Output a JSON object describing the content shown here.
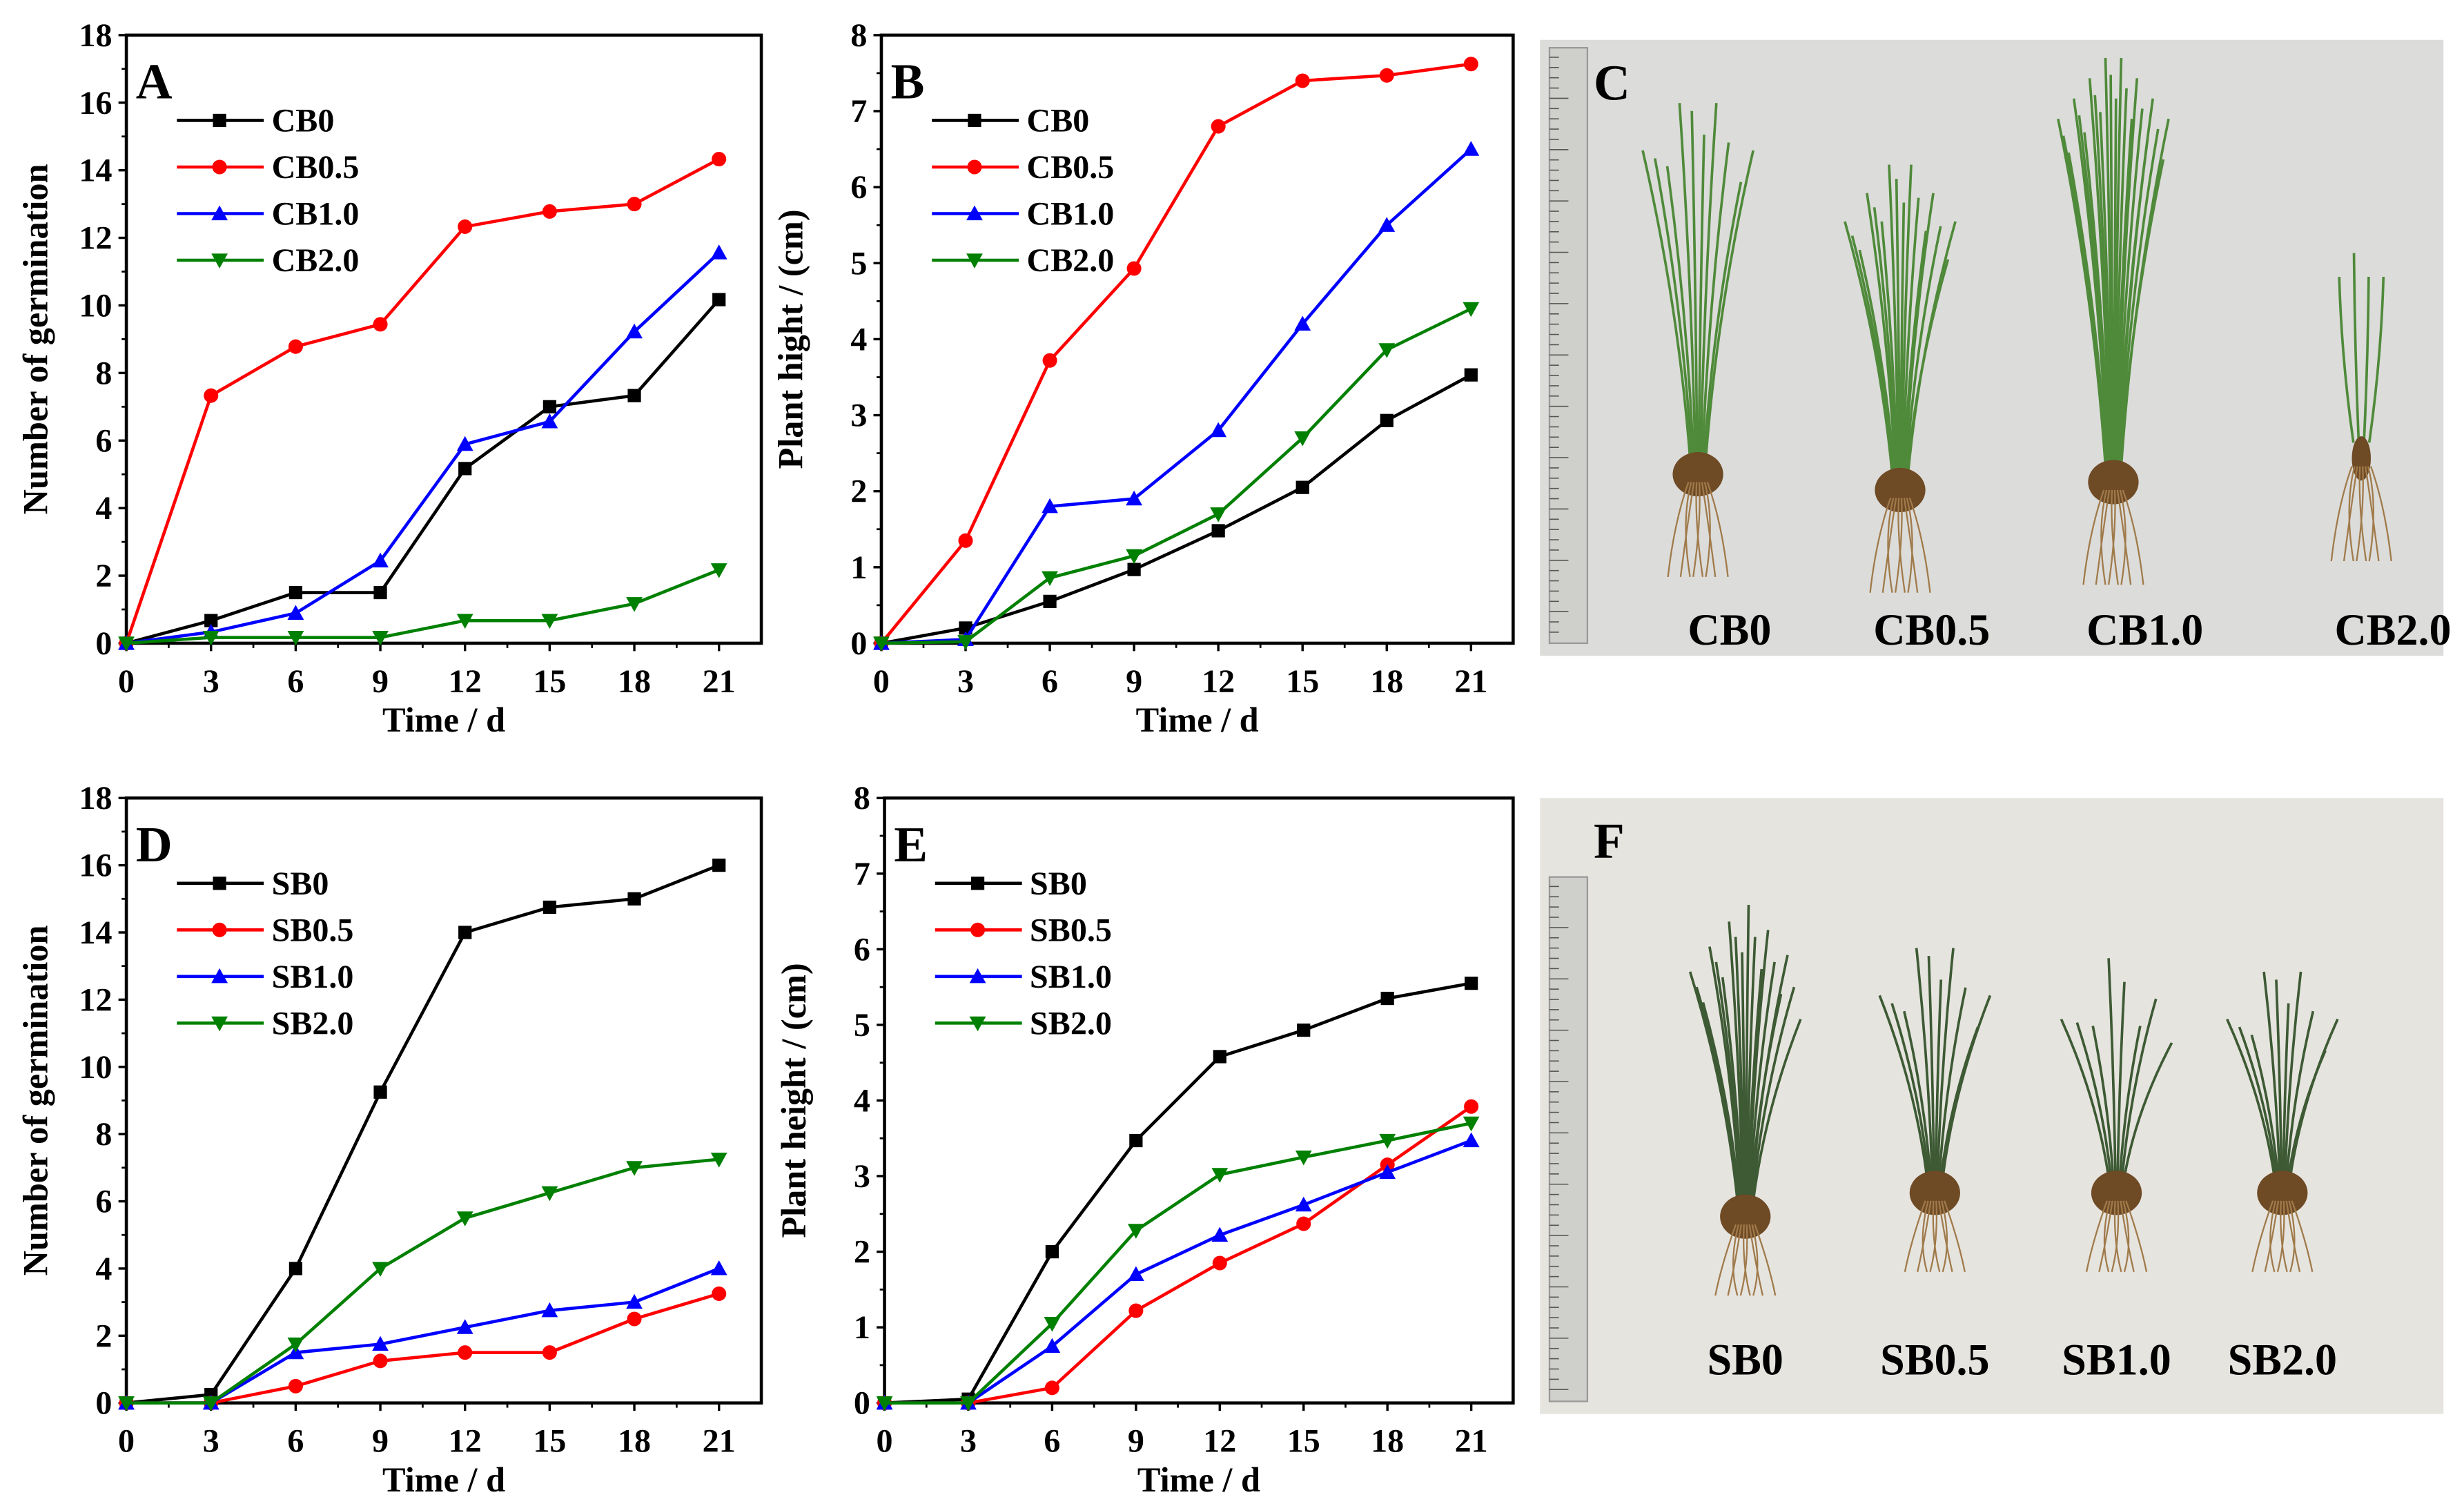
{
  "chart_data": [
    {
      "panel": "A",
      "type": "line",
      "xlabel": "Time / d",
      "ylabel": "Number of germination",
      "x": [
        0,
        3,
        6,
        9,
        12,
        15,
        18,
        21
      ],
      "xlim": [
        0,
        22.5
      ],
      "xticks": [
        0,
        3,
        6,
        9,
        12,
        15,
        18,
        21
      ],
      "ylim": [
        0,
        18
      ],
      "yticks": [
        0,
        2,
        4,
        6,
        8,
        10,
        12,
        14,
        16,
        18
      ],
      "grid": false,
      "legend": "top-left",
      "series": [
        {
          "name": "CB0",
          "color": "#000000",
          "marker": "square",
          "values": [
            0,
            0.67,
            1.5,
            1.5,
            5.17,
            7,
            7.33,
            10.17
          ]
        },
        {
          "name": "CB0.5",
          "color": "#ff0000",
          "marker": "circle",
          "values": [
            0,
            7.33,
            8.78,
            9.44,
            12.33,
            12.78,
            13,
            14.33
          ]
        },
        {
          "name": "CB1.0",
          "color": "#0000ff",
          "marker": "triangle-up",
          "values": [
            0,
            0.33,
            0.89,
            2.44,
            5.89,
            6.56,
            9.22,
            11.56
          ]
        },
        {
          "name": "CB2.0",
          "color": "#008000",
          "marker": "triangle-down",
          "values": [
            0,
            0.17,
            0.17,
            0.17,
            0.67,
            0.67,
            1.17,
            2.17
          ]
        }
      ]
    },
    {
      "panel": "B",
      "type": "line",
      "xlabel": "Time / d",
      "ylabel": "Plant hight / (cm)",
      "x": [
        0,
        3,
        6,
        9,
        12,
        15,
        18,
        21
      ],
      "xlim": [
        0,
        22.5
      ],
      "xticks": [
        0,
        3,
        6,
        9,
        12,
        15,
        18,
        21
      ],
      "ylim": [
        0,
        8
      ],
      "yticks": [
        0,
        1,
        2,
        3,
        4,
        5,
        6,
        7,
        8
      ],
      "grid": false,
      "legend": "top-left",
      "series": [
        {
          "name": "CB0",
          "color": "#000000",
          "marker": "square",
          "values": [
            0,
            0.2,
            0.55,
            0.97,
            1.48,
            2.05,
            2.93,
            3.53
          ]
        },
        {
          "name": "CB0.5",
          "color": "#ff0000",
          "marker": "circle",
          "values": [
            0,
            1.35,
            3.72,
            4.93,
            6.8,
            7.4,
            7.47,
            7.62
          ]
        },
        {
          "name": "CB1.0",
          "color": "#0000ff",
          "marker": "triangle-up",
          "values": [
            0,
            0.05,
            1.8,
            1.9,
            2.8,
            4.2,
            5.5,
            6.5
          ]
        },
        {
          "name": "CB2.0",
          "color": "#008000",
          "marker": "triangle-down",
          "values": [
            0,
            0.02,
            0.86,
            1.15,
            1.7,
            2.7,
            3.86,
            4.4
          ]
        }
      ]
    },
    {
      "panel": "D",
      "type": "line",
      "xlabel": "Time / d",
      "ylabel": "Number of germination",
      "x": [
        0,
        3,
        6,
        9,
        12,
        15,
        18,
        21
      ],
      "xlim": [
        0,
        22.5
      ],
      "xticks": [
        0,
        3,
        6,
        9,
        12,
        15,
        18,
        21
      ],
      "ylim": [
        0,
        18
      ],
      "yticks": [
        0,
        2,
        4,
        6,
        8,
        10,
        12,
        14,
        16,
        18
      ],
      "grid": false,
      "legend": "top-left",
      "series": [
        {
          "name": "SB0",
          "color": "#000000",
          "marker": "square",
          "values": [
            0,
            0.25,
            4,
            9.25,
            14,
            14.75,
            15,
            16
          ]
        },
        {
          "name": "SB0.5",
          "color": "#ff0000",
          "marker": "circle",
          "values": [
            0,
            0,
            0.5,
            1.25,
            1.5,
            1.5,
            2.5,
            3.25
          ]
        },
        {
          "name": "SB1.0",
          "color": "#0000ff",
          "marker": "triangle-up",
          "values": [
            0,
            0,
            1.5,
            1.75,
            2.25,
            2.75,
            3,
            4
          ]
        },
        {
          "name": "SB2.0",
          "color": "#008000",
          "marker": "triangle-down",
          "values": [
            0,
            0,
            1.75,
            4,
            5.5,
            6.25,
            7,
            7.25
          ]
        }
      ]
    },
    {
      "panel": "E",
      "type": "line",
      "xlabel": "Time / d",
      "ylabel": "Plant height / (cm)",
      "x": [
        0,
        3,
        6,
        9,
        12,
        15,
        18,
        21
      ],
      "xlim": [
        0,
        22.5
      ],
      "xticks": [
        0,
        3,
        6,
        9,
        12,
        15,
        18,
        21
      ],
      "ylim": [
        0,
        8
      ],
      "yticks": [
        0,
        1,
        2,
        3,
        4,
        5,
        6,
        7,
        8
      ],
      "grid": false,
      "legend": "top-left",
      "series": [
        {
          "name": "SB0",
          "color": "#000000",
          "marker": "square",
          "values": [
            0,
            0.05,
            2,
            3.47,
            4.58,
            4.93,
            5.35,
            5.55
          ]
        },
        {
          "name": "SB0.5",
          "color": "#ff0000",
          "marker": "circle",
          "values": [
            0,
            0,
            0.2,
            1.22,
            1.85,
            2.37,
            3.15,
            3.92
          ]
        },
        {
          "name": "SB1.0",
          "color": "#0000ff",
          "marker": "triangle-up",
          "values": [
            0,
            0,
            0.75,
            1.7,
            2.22,
            2.62,
            3.05,
            3.47
          ]
        },
        {
          "name": "SB2.0",
          "color": "#008000",
          "marker": "triangle-down",
          "values": [
            0,
            0,
            1.05,
            2.28,
            3.02,
            3.25,
            3.47,
            3.7
          ]
        }
      ]
    }
  ],
  "photos": [
    {
      "panel": "C",
      "labels": [
        "CB0",
        "CB0.5",
        "CB1.0",
        "CB2.0"
      ],
      "background": "#dcdcda"
    },
    {
      "panel": "F",
      "labels": [
        "SB0",
        "SB0.5",
        "SB1.0",
        "SB2.0"
      ],
      "background": "#e6e4df"
    }
  ]
}
